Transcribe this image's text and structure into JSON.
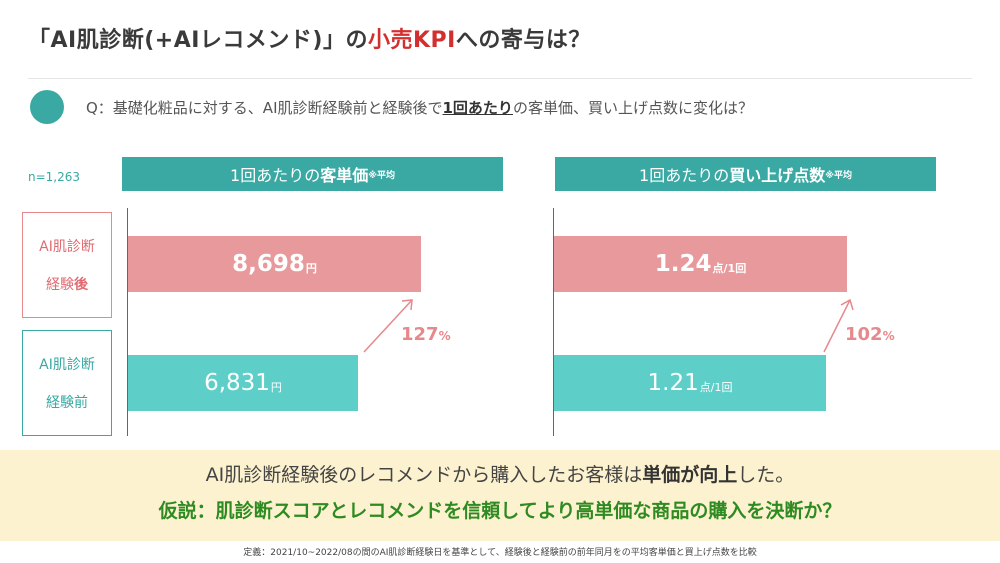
{
  "title": {
    "part1": "「AI肌診断(+AIレコメンド)」の",
    "accent": "小売KPI",
    "part2": "への寄与は？"
  },
  "question": {
    "part1": "Q：基礎化粧品に対する、AI肌診断経験前と経験後で",
    "emphasis": "1回あたり",
    "part2": "の客単価、買い上げ点数に変化は？"
  },
  "sample_size": "n=1,263",
  "row_labels": {
    "after": {
      "line1": "AI肌診断",
      "line2": "経験",
      "line2_bold": "後"
    },
    "before": {
      "line1": "AI肌診断",
      "line2": "経験前"
    }
  },
  "colors": {
    "teal": "#3aa9a3",
    "bar_after": "#e8999b",
    "bar_before": "#5dcfc8",
    "accent_red": "#d32f2f",
    "banner_bg": "#fdf2cf",
    "hypothesis_green": "#2e8b22"
  },
  "chart_data": [
    {
      "type": "bar",
      "title_prefix": "1回あたりの",
      "title_bold": "客単価",
      "title_note": "※平均",
      "categories": [
        "AI肌診断経験後",
        "AI肌診断経験前"
      ],
      "values": [
        8698,
        6831
      ],
      "value_labels": [
        "8,698",
        "6,831"
      ],
      "unit": "円",
      "change": "127",
      "change_unit": "%"
    },
    {
      "type": "bar",
      "title_prefix": "1回あたりの",
      "title_bold": "買い上げ点数",
      "title_note": "※平均",
      "categories": [
        "AI肌診断経験後",
        "AI肌診断経験前"
      ],
      "values": [
        1.24,
        1.21
      ],
      "value_labels": [
        "1.24",
        "1.21"
      ],
      "unit": "点/1回",
      "change": "102",
      "change_unit": "%"
    }
  ],
  "banner": {
    "line1_part1": "AI肌診断経験後のレコメンドから購入したお客様は",
    "line1_bold": "単価が向上",
    "line1_part2": "した。",
    "line2": "仮説：肌診断スコアとレコメンドを信頼してより高単価な商品の購入を決断か？"
  },
  "footnote": "定義：2021/10~2022/08の間のAI肌診断経験日を基準として、経験後と経験前の前年同月をの平均客単価と買上げ点数を比較"
}
